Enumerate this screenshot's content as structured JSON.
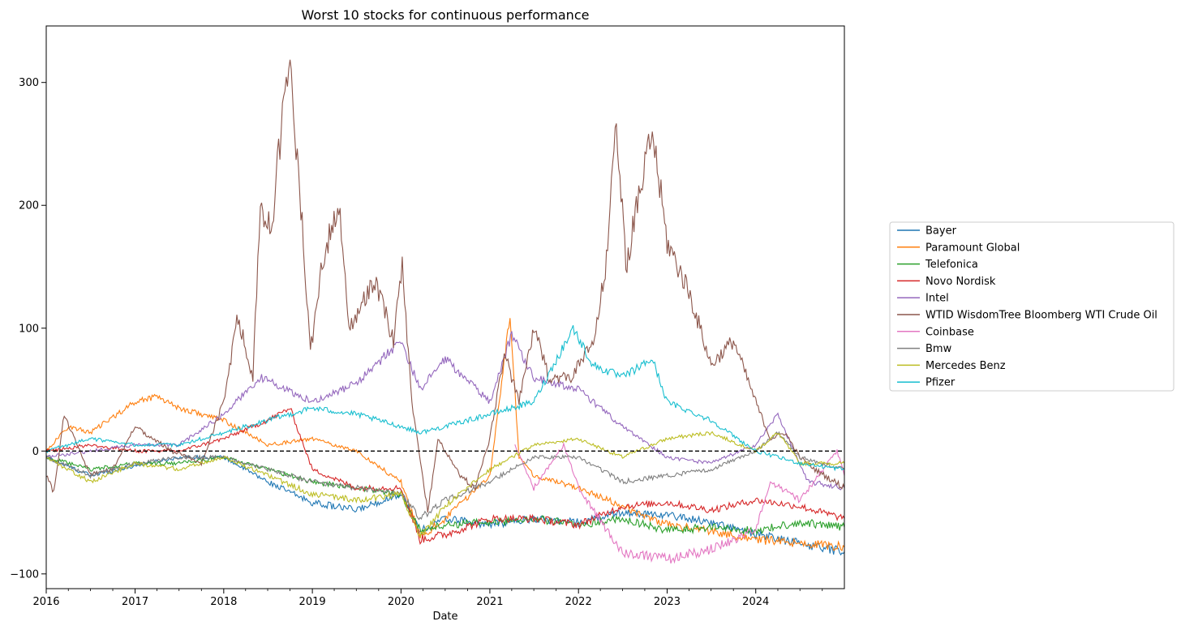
{
  "chart_data": {
    "type": "line",
    "title": "Worst 10 stocks for continuous performance",
    "xlabel": "Date",
    "ylabel": "",
    "xlim": [
      "2016-01-01",
      "2024-12-31"
    ],
    "ylim": [
      -112,
      346
    ],
    "x_ticks": [
      "2016",
      "2017",
      "2018",
      "2019",
      "2020",
      "2021",
      "2022",
      "2023",
      "2024"
    ],
    "y_ticks": [
      -100,
      0,
      100,
      200,
      300
    ],
    "y_tick_labels": [
      "−100",
      "0",
      "100",
      "200",
      "300"
    ],
    "grid": false,
    "legend_position": "right",
    "reference_line": {
      "y": 0,
      "style": "dashed",
      "color": "#000000"
    },
    "series": [
      {
        "name": "Bayer",
        "color": "#1f77b4",
        "x": [
          "2016-01-01",
          "2016-07-01",
          "2017-01-01",
          "2017-07-01",
          "2018-01-01",
          "2018-07-01",
          "2019-01-01",
          "2019-07-01",
          "2020-01-01",
          "2020-03-20",
          "2020-07-01",
          "2021-01-01",
          "2021-07-01",
          "2022-01-01",
          "2022-07-01",
          "2023-01-01",
          "2023-07-01",
          "2024-01-01",
          "2024-07-01",
          "2024-12-31"
        ],
        "y": [
          -5,
          -20,
          -12,
          -5,
          -5,
          -25,
          -42,
          -48,
          -35,
          -65,
          -55,
          -60,
          -55,
          -58,
          -50,
          -52,
          -58,
          -68,
          -75,
          -82
        ]
      },
      {
        "name": "Paramount Global",
        "color": "#ff7f0e",
        "x": [
          "2016-01-01",
          "2016-04-01",
          "2016-07-01",
          "2017-01-01",
          "2017-04-01",
          "2017-07-01",
          "2018-01-01",
          "2018-07-01",
          "2019-01-01",
          "2019-07-01",
          "2020-01-01",
          "2020-03-20",
          "2020-07-01",
          "2021-01-01",
          "2021-03-25",
          "2021-05-01",
          "2021-07-01",
          "2022-01-01",
          "2022-07-01",
          "2023-01-01",
          "2023-07-01",
          "2024-01-01",
          "2024-07-01",
          "2024-12-31"
        ],
        "y": [
          0,
          20,
          15,
          40,
          45,
          35,
          25,
          5,
          10,
          0,
          -25,
          -70,
          -55,
          -20,
          110,
          -5,
          -20,
          -30,
          -45,
          -60,
          -65,
          -72,
          -75,
          -78
        ]
      },
      {
        "name": "Telefonica",
        "color": "#2ca02c",
        "x": [
          "2016-01-01",
          "2016-07-01",
          "2017-01-01",
          "2017-07-01",
          "2018-01-01",
          "2018-07-01",
          "2019-01-01",
          "2019-07-01",
          "2020-01-01",
          "2020-03-20",
          "2020-07-01",
          "2021-01-01",
          "2021-07-01",
          "2022-01-01",
          "2022-07-01",
          "2023-01-01",
          "2023-07-01",
          "2024-01-01",
          "2024-07-01",
          "2024-12-31"
        ],
        "y": [
          -5,
          -15,
          -10,
          -10,
          -5,
          -15,
          -25,
          -30,
          -35,
          -65,
          -60,
          -58,
          -55,
          -60,
          -55,
          -65,
          -62,
          -65,
          -58,
          -62
        ]
      },
      {
        "name": "Novo Nordisk",
        "color": "#d62728",
        "x": [
          "2016-01-01",
          "2016-07-01",
          "2017-01-01",
          "2017-07-01",
          "2018-01-01",
          "2018-07-01",
          "2018-10-01",
          "2019-01-01",
          "2019-07-01",
          "2020-01-01",
          "2020-03-20",
          "2020-07-01",
          "2021-01-01",
          "2021-07-01",
          "2022-01-01",
          "2022-07-01",
          "2023-01-01",
          "2023-07-01",
          "2024-01-01",
          "2024-07-01",
          "2024-12-31"
        ],
        "y": [
          0,
          5,
          0,
          0,
          10,
          25,
          35,
          -15,
          -30,
          -30,
          -72,
          -68,
          -55,
          -55,
          -60,
          -45,
          -42,
          -48,
          -40,
          -45,
          -55
        ]
      },
      {
        "name": "Intel",
        "color": "#9467bd",
        "x": [
          "2016-01-01",
          "2016-07-01",
          "2017-01-01",
          "2017-07-01",
          "2018-01-01",
          "2018-06-01",
          "2019-01-01",
          "2019-07-01",
          "2020-01-01",
          "2020-03-20",
          "2020-07-01",
          "2021-01-01",
          "2021-04-01",
          "2021-07-01",
          "2022-01-01",
          "2022-07-01",
          "2023-01-01",
          "2023-07-01",
          "2024-01-01",
          "2024-04-01",
          "2024-08-01",
          "2024-12-31"
        ],
        "y": [
          -5,
          0,
          5,
          5,
          30,
          60,
          40,
          55,
          90,
          50,
          75,
          40,
          95,
          60,
          50,
          20,
          -5,
          -10,
          5,
          30,
          -25,
          -30
        ]
      },
      {
        "name": "WTID WisdomTree Bloomberg WTI Crude Oil",
        "color": "#8c564b",
        "x": [
          "2016-01-01",
          "2016-02-01",
          "2016-03-15",
          "2016-07-01",
          "2016-10-01",
          "2017-01-01",
          "2017-06-01",
          "2017-10-01",
          "2018-01-01",
          "2018-03-01",
          "2018-05-01",
          "2018-06-01",
          "2018-07-15",
          "2018-08-15",
          "2018-10-01",
          "2018-11-15",
          "2018-12-24",
          "2019-02-15",
          "2019-04-20",
          "2019-06-01",
          "2019-09-16",
          "2019-12-01",
          "2020-01-06",
          "2020-02-15",
          "2020-04-20",
          "2020-06-01",
          "2020-09-01",
          "2020-11-01",
          "2021-01-01",
          "2021-03-01",
          "2021-05-01",
          "2021-07-01",
          "2021-09-01",
          "2021-12-01",
          "2022-03-08",
          "2022-05-01",
          "2022-06-01",
          "2022-07-15",
          "2022-09-01",
          "2022-11-01",
          "2023-01-01",
          "2023-04-01",
          "2023-07-01",
          "2023-10-01",
          "2024-01-01",
          "2024-03-01",
          "2024-05-01",
          "2024-07-01",
          "2024-09-01",
          "2024-12-31"
        ],
        "y": [
          -20,
          -35,
          30,
          -20,
          -15,
          20,
          0,
          -10,
          40,
          110,
          60,
          200,
          180,
          240,
          320,
          200,
          80,
          160,
          200,
          100,
          140,
          90,
          150,
          40,
          -50,
          10,
          -20,
          -30,
          10,
          80,
          40,
          100,
          60,
          60,
          90,
          160,
          280,
          150,
          200,
          260,
          170,
          130,
          70,
          90,
          40,
          10,
          15,
          -5,
          -15,
          -30
        ]
      },
      {
        "name": "Coinbase",
        "color": "#e377c2",
        "x": [
          "2021-04-14",
          "2021-07-01",
          "2021-11-01",
          "2022-01-01",
          "2022-05-01",
          "2022-07-01",
          "2023-01-01",
          "2023-07-01",
          "2024-01-01",
          "2024-03-01",
          "2024-07-01",
          "2024-12-01",
          "2024-12-31"
        ],
        "y": [
          5,
          -30,
          5,
          -30,
          -65,
          -82,
          -88,
          -80,
          -65,
          -25,
          -40,
          0,
          -20
        ]
      },
      {
        "name": "Bmw",
        "color": "#7f7f7f",
        "x": [
          "2016-01-01",
          "2016-07-01",
          "2017-01-01",
          "2017-07-01",
          "2018-01-01",
          "2018-07-01",
          "2019-01-01",
          "2019-07-01",
          "2020-01-01",
          "2020-03-20",
          "2020-07-01",
          "2021-01-01",
          "2021-07-01",
          "2022-01-01",
          "2022-07-01",
          "2023-01-01",
          "2023-07-01",
          "2024-01-01",
          "2024-04-01",
          "2024-07-01",
          "2024-12-31"
        ],
        "y": [
          -5,
          -20,
          -10,
          -5,
          -5,
          -15,
          -25,
          -30,
          -35,
          -55,
          -40,
          -25,
          -5,
          -5,
          -25,
          -20,
          -15,
          0,
          15,
          -5,
          -15
        ]
      },
      {
        "name": "Mercedes Benz",
        "color": "#bcbd22",
        "x": [
          "2016-01-01",
          "2016-07-01",
          "2017-01-01",
          "2017-07-01",
          "2018-01-01",
          "2018-07-01",
          "2019-01-01",
          "2019-07-01",
          "2020-01-01",
          "2020-03-20",
          "2020-07-01",
          "2021-01-01",
          "2021-07-01",
          "2022-01-01",
          "2022-07-01",
          "2023-01-01",
          "2023-07-01",
          "2024-01-01",
          "2024-04-01",
          "2024-07-01",
          "2024-12-31"
        ],
        "y": [
          -5,
          -25,
          -10,
          -15,
          -5,
          -20,
          -35,
          -40,
          -35,
          -70,
          -45,
          -15,
          5,
          10,
          -5,
          10,
          15,
          0,
          15,
          -10,
          -10
        ]
      },
      {
        "name": "Pfizer",
        "color": "#17becf",
        "x": [
          "2016-01-01",
          "2016-07-01",
          "2017-01-01",
          "2017-07-01",
          "2018-01-01",
          "2018-07-01",
          "2019-01-01",
          "2019-07-01",
          "2020-01-01",
          "2020-03-20",
          "2020-07-01",
          "2021-01-01",
          "2021-07-01",
          "2021-12-10",
          "2022-03-01",
          "2022-07-01",
          "2022-11-01",
          "2023-01-01",
          "2023-07-01",
          "2024-01-01",
          "2024-07-01",
          "2024-12-31"
        ],
        "y": [
          0,
          10,
          5,
          5,
          15,
          25,
          35,
          30,
          20,
          15,
          20,
          30,
          40,
          100,
          70,
          60,
          75,
          40,
          25,
          0,
          -10,
          -15
        ]
      }
    ]
  }
}
